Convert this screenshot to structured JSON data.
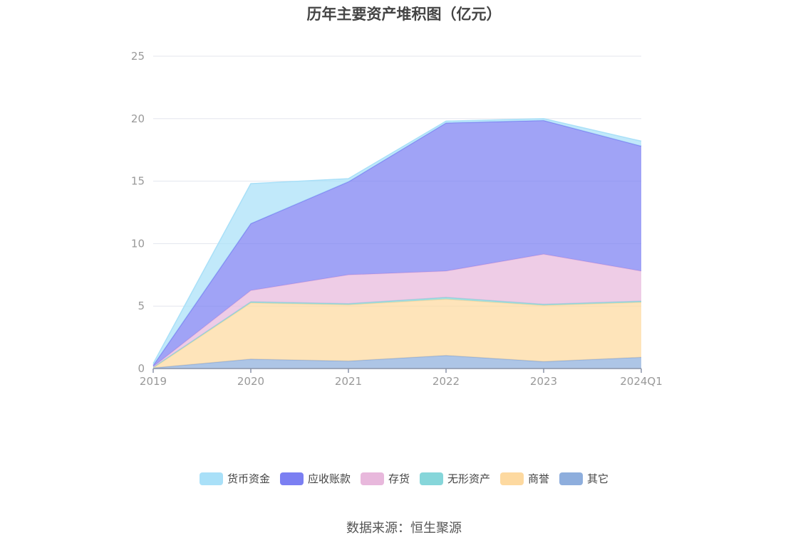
{
  "title": "历年主要资产堆积图（亿元）",
  "source": "数据来源：恒生聚源",
  "chart_data": {
    "type": "area",
    "stacked": true,
    "categories": [
      "2019",
      "2020",
      "2021",
      "2022",
      "2023",
      "2024Q1"
    ],
    "ylim": [
      0,
      25
    ],
    "yticks": [
      0,
      5,
      10,
      15,
      20,
      25
    ],
    "grid": true,
    "legend_position": "bottom",
    "series": [
      {
        "name": "其它",
        "color": "#8EAEDD",
        "values": [
          0.05,
          0.75,
          0.6,
          1.05,
          0.55,
          0.9
        ]
      },
      {
        "name": "商誉",
        "color": "#FDD9A0",
        "values": [
          0.0,
          4.5,
          4.5,
          4.5,
          4.5,
          4.4
        ]
      },
      {
        "name": "无形资产",
        "color": "#86D6DA",
        "values": [
          0.05,
          0.1,
          0.1,
          0.15,
          0.1,
          0.1
        ]
      },
      {
        "name": "存货",
        "color": "#E8B8DC",
        "values": [
          0.05,
          0.9,
          2.3,
          2.1,
          4.0,
          2.4
        ]
      },
      {
        "name": "应收账款",
        "color": "#7B7FF2",
        "values": [
          0.1,
          5.35,
          7.45,
          11.85,
          10.7,
          10.0
        ]
      },
      {
        "name": "货币资金",
        "color": "#A9E0F8",
        "values": [
          0.15,
          3.2,
          0.25,
          0.15,
          0.15,
          0.4
        ]
      }
    ],
    "legend_order": [
      "货币资金",
      "应收账款",
      "存货",
      "无形资产",
      "商誉",
      "其它"
    ]
  }
}
